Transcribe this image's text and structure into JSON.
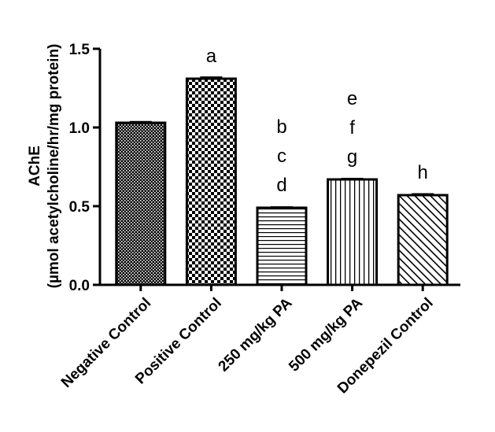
{
  "chart_data": {
    "type": "bar",
    "title": "",
    "ylabel_line1": "AChE",
    "ylabel_line2": "(µmol acetylcholine/hr/mg protein)",
    "xlabel": "",
    "ylim": [
      0,
      1.5
    ],
    "yticks": [
      0.0,
      0.5,
      1.0,
      1.5
    ],
    "ytick_labels": [
      "0.0",
      "0.5",
      "1.0",
      "1.5"
    ],
    "grid": false,
    "categories": [
      "Negative Control",
      "Positive Control",
      "250 mg/kg PA",
      "500 mg/kg PA",
      "Donepezil Control"
    ],
    "values": [
      1.03,
      1.31,
      0.49,
      0.67,
      0.57
    ],
    "errors": [
      0.005,
      0.008,
      0.003,
      0.004,
      0.006
    ],
    "patterns": [
      "dense-dots",
      "checkerboard",
      "horizontal-lines",
      "vertical-lines",
      "diagonal-lines"
    ],
    "annotations": [
      [],
      [
        "a"
      ],
      [
        "b",
        "c",
        "d"
      ],
      [
        "e",
        "f",
        "g"
      ],
      [
        "h"
      ]
    ],
    "colors": {
      "bar_stroke": "#000000",
      "fill": "#000000",
      "background": "#ffffff"
    }
  }
}
